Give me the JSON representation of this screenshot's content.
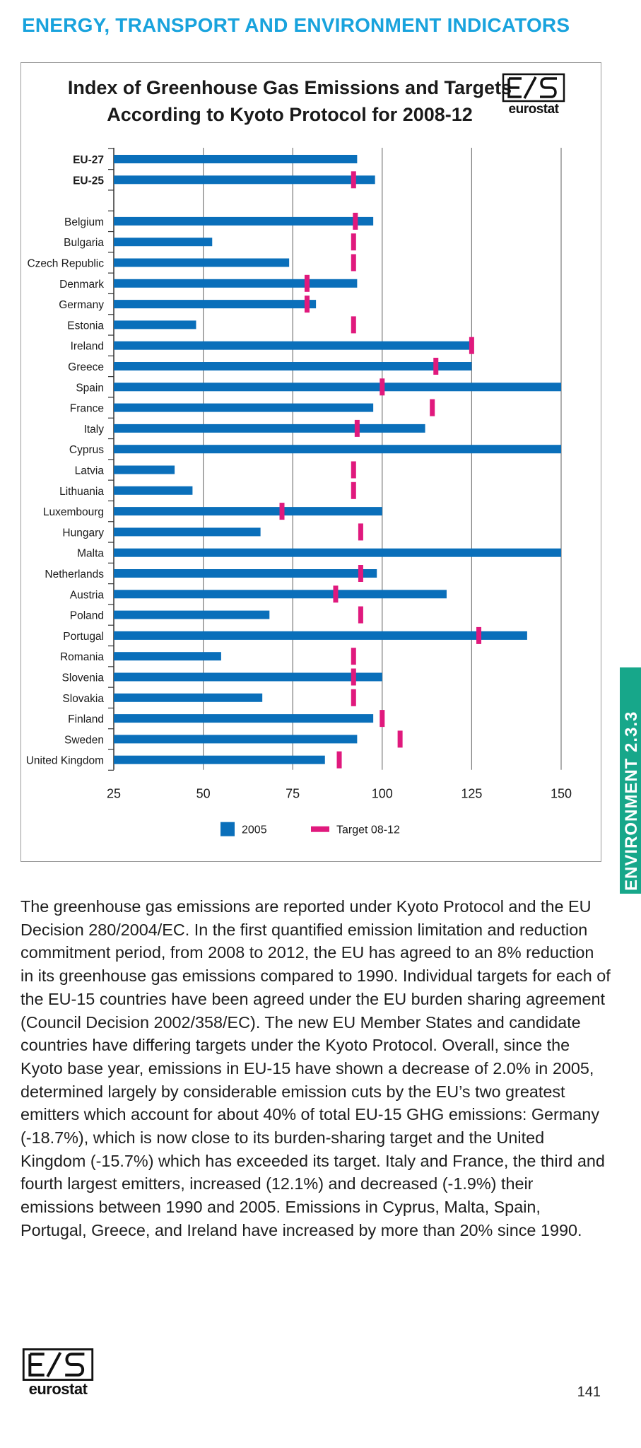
{
  "header": {
    "title": "ENERGY, TRANSPORT AND ENVIRONMENT INDICATORS"
  },
  "side_tab": {
    "label": "ENVIRONMENT 2.3.3"
  },
  "logo": {
    "text": "eurostat",
    "icon": "eurostat-logo-icon"
  },
  "colors": {
    "header": "#19a3dd",
    "bar_2005": "#0a6fba",
    "target": "#e0197d",
    "side_tab": "#17a78a",
    "gridline": "#7a7a7a"
  },
  "chart_data": {
    "type": "bar",
    "orientation": "horizontal",
    "title_lines": [
      "Index of Greenhouse Gas Emissions and Targets",
      "According to Kyoto Protocol for 2008-12"
    ],
    "categories": [
      "EU-27",
      "EU-25",
      "",
      "Belgium",
      "Bulgaria",
      "Czech Republic",
      "Denmark",
      "Germany",
      "Estonia",
      "Ireland",
      "Greece",
      "Spain",
      "France",
      "Italy",
      "Cyprus",
      "Latvia",
      "Lithuania",
      "Luxembourg",
      "Hungary",
      "Malta",
      "Netherlands",
      "Austria",
      "Poland",
      "Portugal",
      "Romania",
      "Slovenia",
      "Slovakia",
      "Finland",
      "Sweden",
      "United Kingdom"
    ],
    "bold_categories": [
      "EU-27",
      "EU-25"
    ],
    "series": [
      {
        "name": "2005",
        "marker": "bar",
        "values": [
          93,
          98,
          null,
          97.5,
          52.5,
          74,
          93,
          81.5,
          48,
          125,
          125,
          150,
          97.5,
          112,
          150,
          42,
          47,
          100,
          66,
          150,
          98.5,
          118,
          68.5,
          140.5,
          55,
          100,
          66.5,
          97.5,
          93,
          84
        ]
      },
      {
        "name": "Target 08-12",
        "marker": "tick",
        "values": [
          null,
          92,
          null,
          92.5,
          92,
          92,
          79,
          79,
          92,
          125,
          115,
          100,
          114,
          93,
          null,
          92,
          92,
          72,
          94,
          null,
          94,
          87,
          94,
          127,
          92,
          92,
          92,
          100,
          105,
          88
        ]
      }
    ],
    "x_ticks": [
      25,
      50,
      75,
      100,
      125,
      150
    ],
    "xlim": [
      25,
      150
    ],
    "vertical_gridlines": true,
    "legend": {
      "placement": "bottom-center",
      "items": [
        "2005",
        "Target 08-12"
      ]
    }
  },
  "body_paragraph": "The greenhouse gas emissions are reported under Kyoto Protocol and the EU Decision 280/2004/EC. In the first quantified emission limitation and reduction commitment period, from 2008 to 2012, the EU has agreed to an 8% reduction in its greenhouse gas emissions compared to 1990. Individual targets for each of the EU-15 countries have been agreed under the EU burden sharing agreement (Council Decision 2002/358/EC). The new EU Member States and candidate countries have differing targets under the Kyoto Protocol. Overall, since the Kyoto base year, emissions in EU-15 have shown a decrease of 2.0% in 2005, determined largely by considerable emission cuts by the EU’s two greatest emitters which account for about 40% of total EU-15 GHG emissions: Germany (-18.7%), which is now close to its burden-sharing target and the United Kingdom (-15.7%) which has exceeded its target. Italy and France, the third and fourth largest emitters, increased (12.1%) and decreased (-1.9%) their emissions between 1990 and 2005. Emissions in Cyprus, Malta, Spain, Portugal, Greece, and Ireland have increased by more than 20% since 1990.",
  "page_number": "141"
}
